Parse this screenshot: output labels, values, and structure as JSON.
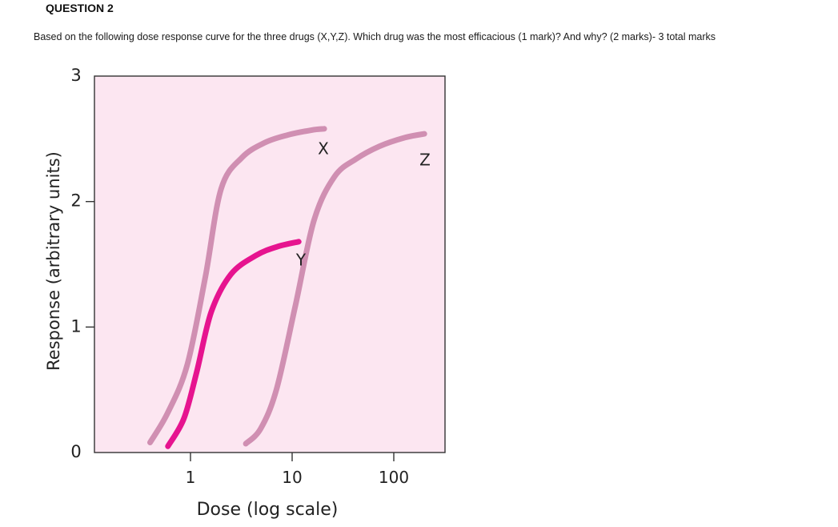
{
  "question": {
    "title": "QUESTION 2",
    "text": "Based on the following dose response curve for the three drugs (X,Y,Z). Which drug was the most efficacious (1 mark)? And why? (2 marks)- 3 total marks"
  },
  "chart_data": {
    "type": "line",
    "title": "",
    "xlabel": "Dose (log scale)",
    "ylabel": "Response (arbitrary units)",
    "x_scale": "log",
    "xlim": [
      0.25,
      200
    ],
    "ylim": [
      0,
      3
    ],
    "x_ticks": [
      {
        "value": 1,
        "label": "1"
      },
      {
        "value": 10,
        "label": "10"
      },
      {
        "value": 100,
        "label": "100"
      }
    ],
    "y_ticks": [
      {
        "value": 0,
        "label": "0"
      },
      {
        "value": 1,
        "label": "1"
      },
      {
        "value": 2,
        "label": "2"
      },
      {
        "value": 3,
        "label": "3"
      }
    ],
    "grid": false,
    "background_color": "#fce6f1",
    "series": [
      {
        "name": "X",
        "color": "#d08fb2",
        "x": [
          0.4,
          0.6,
          0.93,
          1.4,
          2.0,
          3.2,
          5.4,
          9.0,
          15.6,
          20.7
        ],
        "y": [
          0.08,
          0.32,
          0.7,
          1.4,
          2.1,
          2.35,
          2.47,
          2.53,
          2.57,
          2.58
        ]
      },
      {
        "name": "Y",
        "color": "#e6148f",
        "x": [
          0.6,
          0.86,
          1.15,
          1.6,
          2.5,
          4.4,
          7.1,
          11.6
        ],
        "y": [
          0.05,
          0.27,
          0.64,
          1.12,
          1.42,
          1.57,
          1.64,
          1.68
        ]
      },
      {
        "name": "Z",
        "color": "#d08fb2",
        "x": [
          3.5,
          4.9,
          7.0,
          10.7,
          16.4,
          26.2,
          42.7,
          72.2,
          129.0,
          200.0
        ],
        "y": [
          0.07,
          0.19,
          0.5,
          1.16,
          1.85,
          2.2,
          2.34,
          2.44,
          2.51,
          2.54
        ]
      }
    ]
  }
}
